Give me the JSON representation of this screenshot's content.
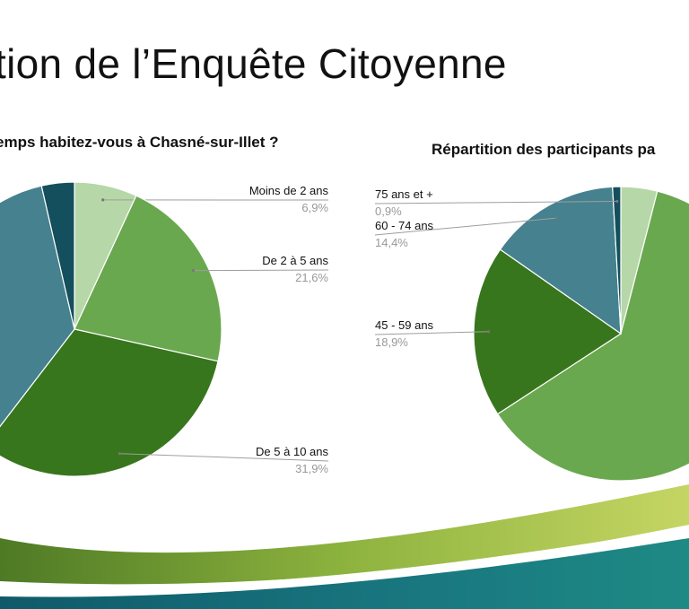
{
  "slide": {
    "title": "tion de l’Enquête Citoyenne"
  },
  "chart_data": [
    {
      "type": "pie",
      "title": "emps habitez-vous à Chasné-sur-Illet ?",
      "slices": [
        {
          "label": "Moins de 2 ans",
          "value": 6.9,
          "display": "6,9%",
          "color": "#b6d7a8"
        },
        {
          "label": "De 2 à 5 ans",
          "value": 21.6,
          "display": "21,6%",
          "color": "#6aa84f"
        },
        {
          "label": "De 5 à 10 ans",
          "value": 31.9,
          "display": "31,9%",
          "color": "#38761d"
        },
        {
          "label": "",
          "value": 36.0,
          "display": "",
          "color": "#45818e"
        },
        {
          "label": "",
          "value": 3.6,
          "display": "",
          "color": "#134f5c"
        }
      ]
    },
    {
      "type": "pie",
      "title": "Répartition des participants pa",
      "slices": [
        {
          "label": "",
          "value": 4.0,
          "display": "",
          "color": "#b6d7a8"
        },
        {
          "label": "",
          "value": 61.8,
          "display": "",
          "color": "#6aa84f"
        },
        {
          "label": "45 - 59 ans",
          "value": 18.9,
          "display": "18,9%",
          "color": "#38761d"
        },
        {
          "label": "60 - 74 ans",
          "value": 14.4,
          "display": "14,4%",
          "color": "#45818e"
        },
        {
          "label": "75 ans et +",
          "value": 0.9,
          "display": "0,9%",
          "color": "#134f5c"
        }
      ]
    }
  ],
  "theme": {
    "label_color": "#111111",
    "value_color": "#999999",
    "leader_color": "#9e9e9e"
  }
}
